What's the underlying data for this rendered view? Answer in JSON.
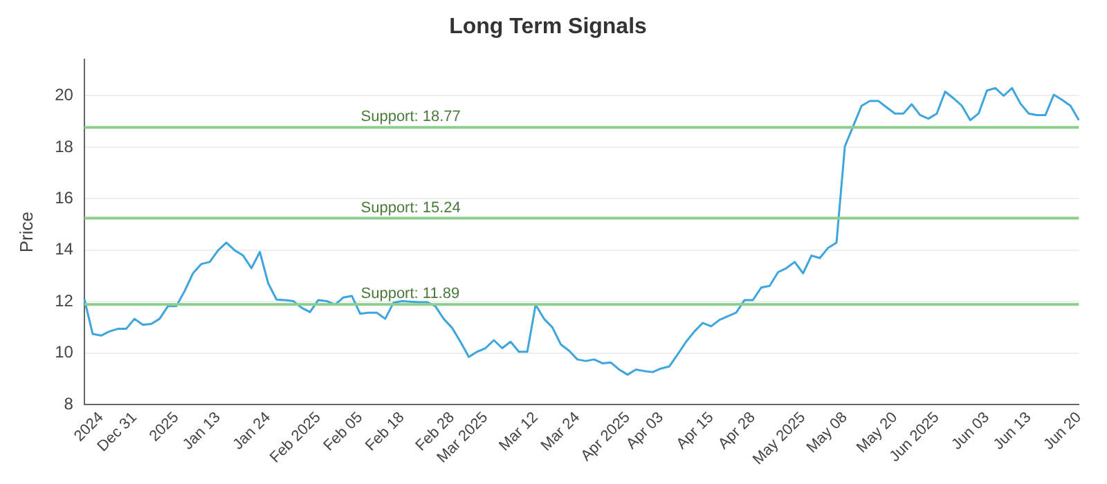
{
  "chart_data": {
    "type": "line",
    "title": "Long Term Signals",
    "ylabel": "Price",
    "categories": [
      null,
      null,
      "2024",
      null,
      null,
      null,
      "Dec 31",
      null,
      null,
      null,
      null,
      "2025",
      null,
      null,
      null,
      null,
      "Jan 13",
      null,
      null,
      null,
      null,
      null,
      "Jan 24",
      null,
      null,
      null,
      null,
      null,
      "Feb 2025",
      null,
      null,
      null,
      null,
      "Feb 05",
      null,
      null,
      null,
      null,
      "Feb 18",
      null,
      null,
      null,
      null,
      null,
      "Feb 28",
      null,
      null,
      null,
      "Mar 2025",
      null,
      null,
      null,
      null,
      null,
      "Mar 12",
      null,
      null,
      null,
      null,
      "Mar 24",
      null,
      null,
      null,
      null,
      null,
      "Apr 2025",
      null,
      null,
      null,
      "Apr 03",
      null,
      null,
      null,
      null,
      null,
      "Apr 15",
      null,
      null,
      null,
      null,
      "Apr 28",
      null,
      null,
      null,
      null,
      null,
      "May 2025",
      null,
      null,
      null,
      null,
      "May 08",
      null,
      null,
      null,
      null,
      null,
      "May 20",
      null,
      null,
      null,
      null,
      "Jun 2025",
      null,
      null,
      null,
      null,
      null,
      "Jun 03",
      null,
      null,
      null,
      null,
      "Jun 13",
      null,
      null,
      null,
      null,
      null,
      "Jun 20"
    ],
    "series": [
      {
        "color": "#3ea6dc",
        "values": [
          12.1,
          10.74,
          10.68,
          10.84,
          10.94,
          10.94,
          11.33,
          11.1,
          11.13,
          11.33,
          11.82,
          11.82,
          12.41,
          13.1,
          13.46,
          13.54,
          13.99,
          14.29,
          13.99,
          13.79,
          13.3,
          13.93,
          12.71,
          12.08,
          12.06,
          12.02,
          11.76,
          11.59,
          12.06,
          12.02,
          11.88,
          12.16,
          12.22,
          11.53,
          11.57,
          11.57,
          11.33,
          11.96,
          12.02,
          12.0,
          11.98,
          11.98,
          11.82,
          11.33,
          10.98,
          10.44,
          9.85,
          10.05,
          10.19,
          10.5,
          10.19,
          10.44,
          10.05,
          10.05,
          11.88,
          11.33,
          11.0,
          10.34,
          10.09,
          9.75,
          9.69,
          9.75,
          9.6,
          9.63,
          9.36,
          9.16,
          9.36,
          9.3,
          9.26,
          9.4,
          9.48,
          9.95,
          10.44,
          10.84,
          11.17,
          11.04,
          11.29,
          11.43,
          11.57,
          12.06,
          12.06,
          12.55,
          12.61,
          13.14,
          13.3,
          13.54,
          13.1,
          13.79,
          13.69,
          14.09,
          14.29,
          18.03,
          18.82,
          19.61,
          19.8,
          19.8,
          19.55,
          19.31,
          19.31,
          19.67,
          19.25,
          19.11,
          19.31,
          20.16,
          19.9,
          19.61,
          19.05,
          19.31,
          20.2,
          20.3,
          20.0,
          20.3,
          19.7,
          19.31,
          19.25,
          19.25,
          20.04,
          19.84,
          19.61,
          19.05
        ]
      }
    ],
    "ylim": [
      8,
      21.4
    ],
    "yticks": [
      8,
      10,
      12,
      14,
      16,
      18,
      20
    ],
    "grid": "y",
    "legend": false,
    "marker": "none",
    "line_style": "solid",
    "ref_lines": [
      {
        "axis": "y",
        "value": 18.77,
        "label": "Support: 18.77",
        "color": "#8ccf8c"
      },
      {
        "axis": "y",
        "value": 15.24,
        "label": "Support: 15.24",
        "color": "#8ccf8c"
      },
      {
        "axis": "y",
        "value": 11.89,
        "label": "Support: 11.89",
        "color": "#8ccf8c"
      }
    ]
  }
}
